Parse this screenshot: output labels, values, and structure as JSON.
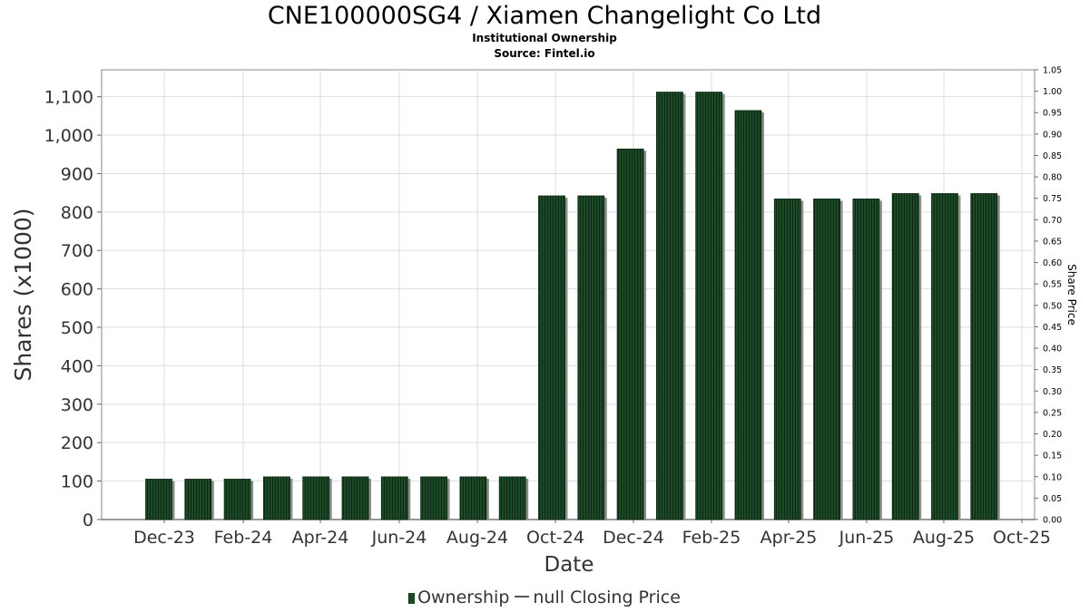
{
  "title": "CNE100000SG4 / Xiamen Changelight Co Ltd",
  "subtitle_1": "Institutional Ownership",
  "subtitle_2": "Source: Fintel.io",
  "legend": {
    "ownership_label": "Ownership",
    "price_label": "null Closing Price"
  },
  "colors": {
    "bar": "#1c4a26",
    "bar_dark": "#0d2814",
    "bar_shadow": "#8a8f8a",
    "grid": "#dddddd",
    "plot_border": "#888888"
  },
  "chart_data": {
    "type": "bar",
    "xlabel": "Date",
    "ylabel": "Shares (x1000)",
    "y2label": "Share Price",
    "ylim": [
      0,
      1170
    ],
    "y2lim": [
      0,
      1.05
    ],
    "grid": true,
    "legend_position": "bottom",
    "x_tick_labels": [
      "Dec-23",
      "Feb-24",
      "Apr-24",
      "Jun-24",
      "Aug-24",
      "Oct-24",
      "Dec-24",
      "Feb-25",
      "Apr-25",
      "Jun-25",
      "Aug-25",
      "Oct-25"
    ],
    "y_tick_labels": [
      "0",
      "100",
      "200",
      "300",
      "400",
      "500",
      "600",
      "700",
      "800",
      "900",
      "1,000",
      "1,100"
    ],
    "y2_tick_labels": [
      "0.00",
      "0.05",
      "0.10",
      "0.15",
      "0.20",
      "0.25",
      "0.30",
      "0.35",
      "0.40",
      "0.45",
      "0.50",
      "0.55",
      "0.60",
      "0.65",
      "0.70",
      "0.75",
      "0.80",
      "0.85",
      "0.90",
      "0.95",
      "1.00",
      "1.05"
    ],
    "series": [
      {
        "name": "Ownership",
        "values": [
          105,
          105,
          105,
          111,
          111,
          111,
          111,
          111,
          111,
          111,
          842,
          842,
          964,
          1112,
          1112,
          1064,
          834,
          834,
          834,
          848,
          848,
          848
        ]
      }
    ]
  }
}
